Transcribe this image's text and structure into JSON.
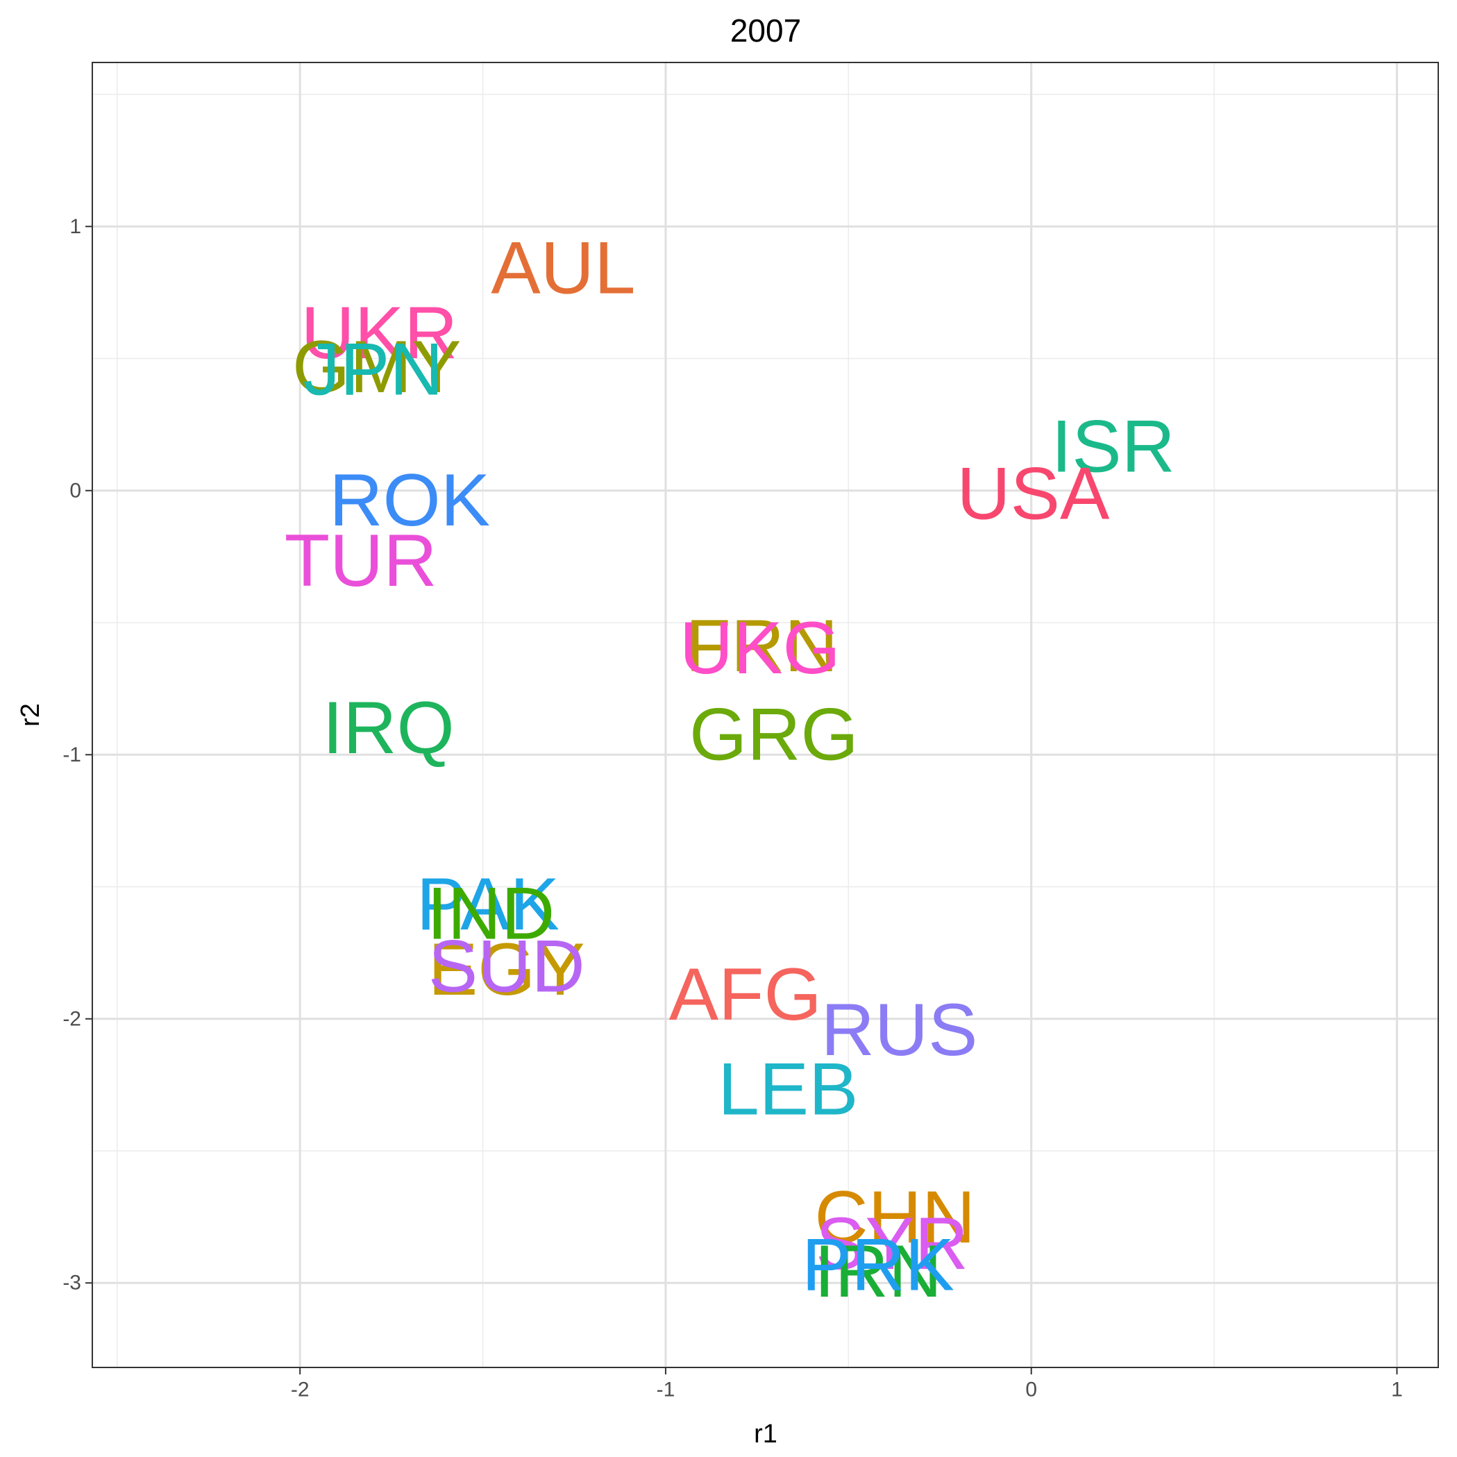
{
  "chart_data": {
    "type": "text_scatter",
    "title": "2007",
    "x_label": "r1",
    "y_label": "r2",
    "labels": [
      "AUL",
      "UKR",
      "GMY",
      "JPN",
      "ISR",
      "USA",
      "ROK",
      "TUR",
      "FRN",
      "UKG",
      "IRQ",
      "GRG",
      "PAK",
      "IND",
      "EGY",
      "SUD",
      "AFG",
      "RUS",
      "LEB",
      "CHN",
      "SYR",
      "IRN",
      "PRK"
    ],
    "x": [
      -1.28,
      -1.783,
      -1.79,
      -1.8,
      0.224,
      0.005,
      -1.7,
      -1.834,
      -0.737,
      -0.742,
      -1.758,
      -0.704,
      -1.486,
      -1.478,
      -1.435,
      -1.435,
      -0.782,
      -0.361,
      -0.665,
      -0.373,
      -0.381,
      -0.419,
      -0.419
    ],
    "y": [
      0.844,
      0.598,
      0.47,
      0.46,
      0.169,
      -0.01,
      -0.035,
      -0.264,
      -0.587,
      -0.594,
      -0.897,
      -0.922,
      -1.565,
      -1.6,
      -1.811,
      -1.8,
      -1.906,
      -2.04,
      -2.265,
      -2.75,
      -2.85,
      -2.955,
      -2.93
    ],
    "colors": [
      "#E46F36",
      "#FF4FA8",
      "#8E9B00",
      "#17B9B0",
      "#1BB98A",
      "#F8476E",
      "#3C8CF7",
      "#EA4FD9",
      "#B49A00",
      "#FF4EC8",
      "#1EB45C",
      "#6BAA0A",
      "#1EA5E8",
      "#3DAA00",
      "#C49A00",
      "#B766F4",
      "#F5645D",
      "#8B7CF5",
      "#1EB6C8",
      "#D68A00",
      "#DA5CF0",
      "#1AAE37",
      "#1F9EF0"
    ],
    "xlim": [
      -2.568,
      1.113
    ],
    "ylim": [
      -3.32,
      1.621
    ],
    "xticks": [
      -2,
      -1,
      0,
      1
    ],
    "yticks": [
      -3,
      -2,
      -1,
      0,
      1
    ],
    "x_minor_grid": [
      -2.5,
      -1.5,
      -0.5,
      0.5
    ],
    "y_minor_grid": [
      -2.5,
      -1.5,
      -0.5,
      0.5,
      1.5
    ],
    "grid": true
  }
}
